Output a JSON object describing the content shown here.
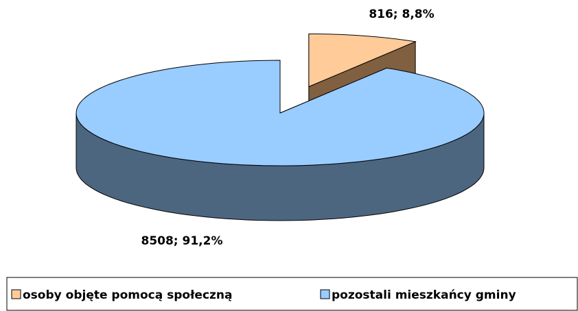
{
  "chart_data": {
    "type": "pie",
    "categories": [
      "osoby objęte pomocą społeczną",
      "pozostali mieszkańcy gminy"
    ],
    "values": [
      816,
      8508
    ],
    "value_labels": [
      "816; 8,8%",
      "8508; 91,2%"
    ],
    "colors": [
      "#ffcc99",
      "#99ccff"
    ],
    "side_colors": [
      "#806040",
      "#4d6680"
    ],
    "legend": "bottom"
  }
}
